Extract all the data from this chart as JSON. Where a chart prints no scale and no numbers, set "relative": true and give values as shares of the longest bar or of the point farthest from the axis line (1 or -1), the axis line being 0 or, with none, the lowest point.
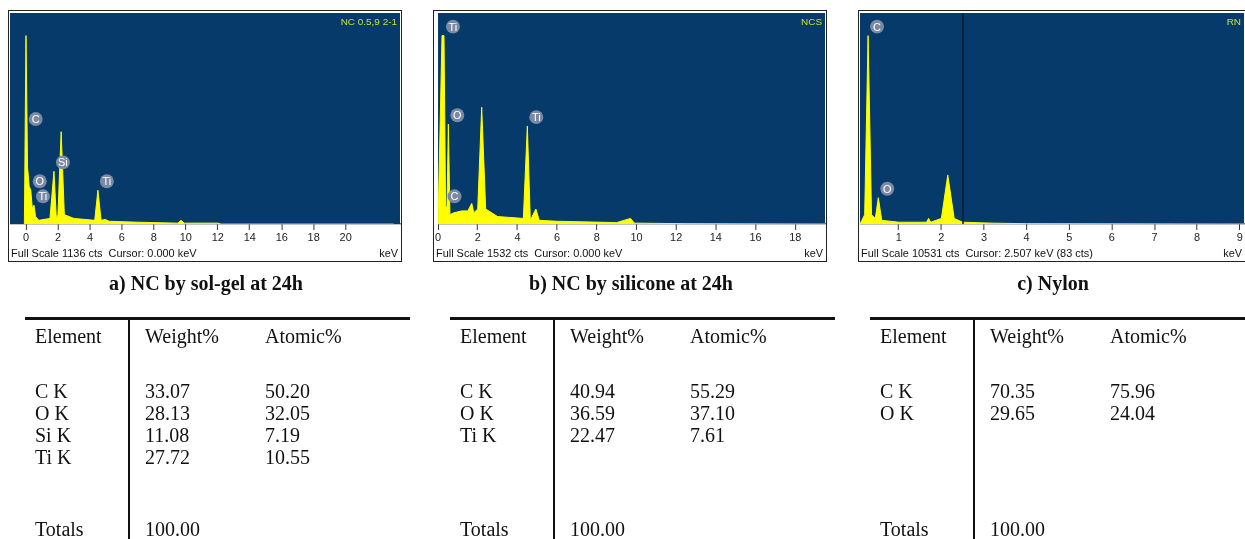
{
  "chart_data": [
    {
      "type": "area",
      "relative": true,
      "title": "a) NC by sol-gel at 24h",
      "subtitle": "NC 0.5,9 2-1",
      "xlabel": "keV",
      "xlim": [
        -1,
        23.4
      ],
      "xticks": [
        0,
        2,
        4,
        6,
        8,
        10,
        12,
        14,
        16,
        18,
        20
      ],
      "grid": false,
      "legend": false,
      "x": [
        -0.1,
        0,
        0.1,
        0.2,
        0.3,
        0.4,
        0.5,
        0.6,
        0.8,
        1.5,
        1.75,
        1.9,
        2.0,
        2.2,
        2.4,
        3,
        4.3,
        4.5,
        4.7,
        4.95,
        5.2,
        7,
        9.5,
        9.7,
        9.9,
        12,
        12.2,
        23
      ],
      "series": [
        {
          "color": "#ffff00",
          "values": [
            0,
            1.0,
            0.3,
            0.2,
            0.18,
            0.08,
            0.1,
            0.04,
            0.02,
            0.03,
            0.28,
            0.03,
            0.05,
            0.49,
            0.05,
            0.03,
            0.02,
            0.18,
            0.02,
            0.025,
            0.015,
            0.01,
            0.005,
            0.02,
            0.005,
            0.005,
            0,
            0
          ]
        }
      ],
      "annotations": [
        "Full Scale 1136 cts  Cursor: 0.000 keV",
        {
          "text": "C",
          "x": 0.05,
          "y": 0.51
        },
        {
          "text": "O",
          "x": 0.3,
          "y": 0.18
        },
        {
          "text": "Ti",
          "x": 0.5,
          "y": 0.1
        },
        {
          "text": "Si",
          "x": 1.75,
          "y": 0.28
        },
        {
          "text": "Ti",
          "x": 4.5,
          "y": 0.18
        }
      ]
    },
    {
      "type": "area",
      "relative": true,
      "title": "b) NC by silicone at 24h",
      "subtitle": "NCS",
      "xlabel": "keV",
      "xlim": [
        0,
        19.5
      ],
      "xticks": [
        0,
        2,
        4,
        6,
        8,
        10,
        12,
        14,
        16,
        18
      ],
      "grid": false,
      "legend": false,
      "x": [
        0,
        0.1,
        0.2,
        0.3,
        0.38,
        0.45,
        0.52,
        0.6,
        0.8,
        1.2,
        1.5,
        1.7,
        1.8,
        2.0,
        2.2,
        2.4,
        3,
        4.3,
        4.5,
        4.65,
        4.93,
        5.1,
        6,
        9,
        9.7,
        9.9,
        12.5,
        19.5
      ],
      "series": [
        {
          "color": "#ffff00",
          "values": [
            0,
            0.5,
            1.0,
            1.0,
            0.1,
            0.08,
            0.53,
            0.05,
            0.06,
            0.07,
            0.07,
            0.11,
            0.06,
            0.08,
            0.62,
            0.08,
            0.04,
            0.03,
            0.52,
            0.02,
            0.08,
            0.02,
            0.015,
            0.008,
            0.03,
            0.005,
            0.002,
            0
          ]
        }
      ],
      "annotations": [
        "Full Scale 1532 cts  Cursor: 0.000 keV",
        {
          "text": "Ti",
          "x": 0.3,
          "y": 1.0
        },
        {
          "text": "C",
          "x": 0.38,
          "y": 0.1
        },
        {
          "text": "O",
          "x": 0.52,
          "y": 0.53
        },
        {
          "text": "Ti",
          "x": 4.5,
          "y": 0.52
        }
      ]
    },
    {
      "type": "area",
      "relative": true,
      "title": "c) Nylon",
      "subtitle": "RN",
      "xlabel": "keV",
      "xlim": [
        0.09,
        9.1
      ],
      "xticks": [
        1,
        2,
        3,
        4,
        5,
        6,
        7,
        8,
        9
      ],
      "grid": false,
      "legend": false,
      "x": [
        0.09,
        0.2,
        0.28,
        0.36,
        0.45,
        0.52,
        0.6,
        1.0,
        1.65,
        1.7,
        1.75,
        2.0,
        2.15,
        2.3,
        2.5,
        3.2,
        4,
        9.1
      ],
      "series": [
        {
          "color": "#ffff00",
          "values": [
            0,
            0.05,
            1.0,
            0.05,
            0.03,
            0.14,
            0.02,
            0.01,
            0.01,
            0.03,
            0.01,
            0.03,
            0.26,
            0.03,
            0.01,
            0.005,
            0.002,
            0
          ]
        }
      ],
      "ref_lines": [
        {
          "axis": "x",
          "value": 2.507,
          "color": "#0b1a2e"
        }
      ],
      "annotations": [
        "Full Scale 10531 cts  Cursor: 2.507 keV (83 cts)",
        {
          "text": "C",
          "x": 0.28,
          "y": 1.0
        },
        {
          "text": "O",
          "x": 0.52,
          "y": 0.14
        }
      ]
    },
    {
      "type": "other",
      "xlabel": "Element",
      "categories": [
        "C K",
        "O K",
        "Si K",
        "Ti K"
      ],
      "series": [
        {
          "name": "Weight%",
          "values": [
            33.07,
            28.13,
            11.08,
            27.72
          ]
        },
        {
          "name": "Atomic%",
          "values": [
            50.2,
            32.05,
            7.19,
            10.55
          ],
          "value_labels": [
            "50.20",
            "32.05",
            "7.19",
            "10.55"
          ]
        }
      ],
      "data_labels": true,
      "annotations": [
        "Totals"
      ],
      "totals": [
        "100.00"
      ]
    },
    {
      "type": "other",
      "xlabel": "Element",
      "categories": [
        "C K",
        "O K",
        "Ti K"
      ],
      "series": [
        {
          "name": "Weight%",
          "values": [
            40.94,
            36.59,
            22.47
          ]
        },
        {
          "name": "Atomic%",
          "values": [
            55.29,
            37.1,
            7.61
          ],
          "value_labels": [
            "55.29",
            "37.10",
            "7.61"
          ]
        }
      ],
      "data_labels": true,
      "annotations": [
        "Totals"
      ],
      "totals": [
        "100.00"
      ]
    },
    {
      "type": "other",
      "xlabel": "Element",
      "categories": [
        "C K",
        "O K"
      ],
      "series": [
        {
          "name": "Weight%",
          "values": [
            70.35,
            29.65
          ]
        },
        {
          "name": "Atomic%",
          "values": [
            75.96,
            24.04
          ],
          "value_labels": [
            "75.96",
            "24.04"
          ]
        }
      ],
      "data_labels": true,
      "annotations": [
        "Totals"
      ],
      "totals": [
        "100.00"
      ]
    }
  ]
}
